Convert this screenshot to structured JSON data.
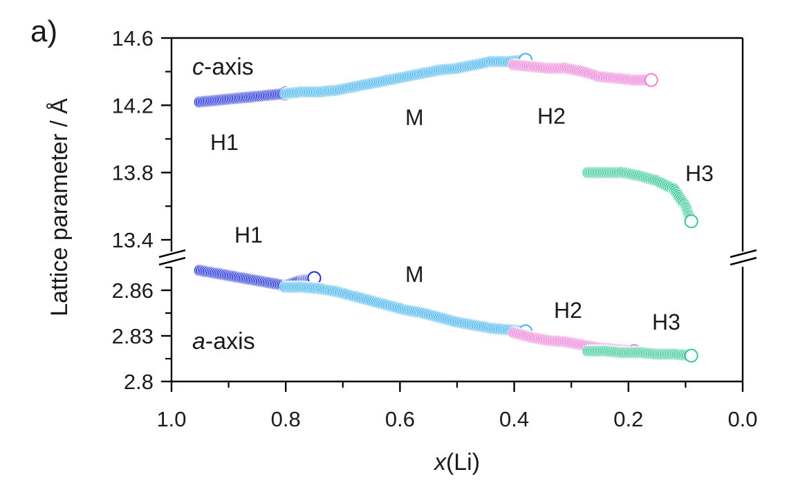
{
  "chart_data": {
    "type": "scatter",
    "panel_label": "a)",
    "xlabel_italic": "x",
    "xlabel_rest": "(Li)",
    "ylabel": "Lattice parameter / Å",
    "xlim": [
      1.0,
      0.0
    ],
    "x_reversed": true,
    "x_ticks": [
      "1.0",
      "0.8",
      "0.6",
      "0.4",
      "0.2",
      "0.0"
    ],
    "x_tick_values": [
      1.0,
      0.8,
      0.6,
      0.4,
      0.2,
      0.0
    ],
    "upper_panel": {
      "name": "c-axis",
      "ylim": [
        13.3,
        14.6
      ],
      "y_ticks": [
        "14.6",
        "14.2",
        "13.8",
        "13.4"
      ],
      "y_tick_values": [
        14.6,
        14.2,
        13.8,
        13.4
      ],
      "label_italic": "c",
      "label_rest": "-axis",
      "series": [
        {
          "name": "H1",
          "color": "#1a2ad6",
          "x": [
            0.95,
            0.92,
            0.89,
            0.86,
            0.83,
            0.8
          ],
          "y": [
            14.22,
            14.23,
            14.24,
            14.25,
            14.26,
            14.27
          ]
        },
        {
          "name": "M",
          "color": "#3fb2ee",
          "x": [
            0.8,
            0.77,
            0.74,
            0.71,
            0.68,
            0.65,
            0.62,
            0.59,
            0.56,
            0.53,
            0.5,
            0.47,
            0.44,
            0.41,
            0.38
          ],
          "y": [
            14.27,
            14.28,
            14.28,
            14.29,
            14.31,
            14.33,
            14.35,
            14.37,
            14.39,
            14.41,
            14.42,
            14.44,
            14.46,
            14.46,
            14.47
          ]
        },
        {
          "name": "H2",
          "color": "#ec7ed8",
          "x": [
            0.4,
            0.37,
            0.34,
            0.31,
            0.28,
            0.25,
            0.22,
            0.19,
            0.16
          ],
          "y": [
            14.44,
            14.43,
            14.42,
            14.42,
            14.4,
            14.37,
            14.36,
            14.35,
            14.35
          ]
        },
        {
          "name": "H3",
          "color": "#36c893",
          "x": [
            0.27,
            0.24,
            0.21,
            0.18,
            0.15,
            0.12,
            0.1,
            0.09
          ],
          "y": [
            13.8,
            13.8,
            13.8,
            13.78,
            13.75,
            13.7,
            13.6,
            13.51
          ]
        }
      ]
    },
    "lower_panel": {
      "name": "a-axis",
      "ylim": [
        2.8,
        2.875
      ],
      "y_ticks": [
        "2.86",
        "2.83",
        "2.8"
      ],
      "y_tick_values": [
        2.86,
        2.83,
        2.8
      ],
      "label_italic": "a",
      "label_rest": "-axis",
      "series": [
        {
          "name": "H1",
          "color": "#1a2ad6",
          "x": [
            0.95,
            0.92,
            0.89,
            0.86,
            0.83,
            0.8,
            0.77,
            0.75
          ],
          "y": [
            2.873,
            2.871,
            2.869,
            2.867,
            2.865,
            2.863,
            2.867,
            2.868
          ]
        },
        {
          "name": "M",
          "color": "#3fb2ee",
          "x": [
            0.8,
            0.77,
            0.74,
            0.71,
            0.68,
            0.65,
            0.62,
            0.59,
            0.56,
            0.53,
            0.5,
            0.47,
            0.44,
            0.41,
            0.38
          ],
          "y": [
            2.862,
            2.862,
            2.861,
            2.859,
            2.856,
            2.853,
            2.85,
            2.847,
            2.845,
            2.842,
            2.839,
            2.837,
            2.835,
            2.834,
            2.833
          ]
        },
        {
          "name": "H2",
          "color": "#ec7ed8",
          "x": [
            0.4,
            0.37,
            0.34,
            0.31,
            0.28,
            0.25,
            0.22,
            0.19
          ],
          "y": [
            2.832,
            2.829,
            2.827,
            2.826,
            2.824,
            2.822,
            2.821,
            2.82
          ]
        },
        {
          "name": "H3",
          "color": "#36c893",
          "x": [
            0.27,
            0.24,
            0.21,
            0.18,
            0.15,
            0.12,
            0.09
          ],
          "y": [
            2.82,
            2.82,
            2.819,
            2.819,
            2.818,
            2.818,
            2.817
          ]
        }
      ]
    },
    "annotations": {
      "c_H1": "H1",
      "c_M": "M",
      "c_H2": "H2",
      "c_H3": "H3",
      "a_H1": "H1",
      "a_M": "M",
      "a_H2": "H2",
      "a_H3": "H3"
    }
  }
}
